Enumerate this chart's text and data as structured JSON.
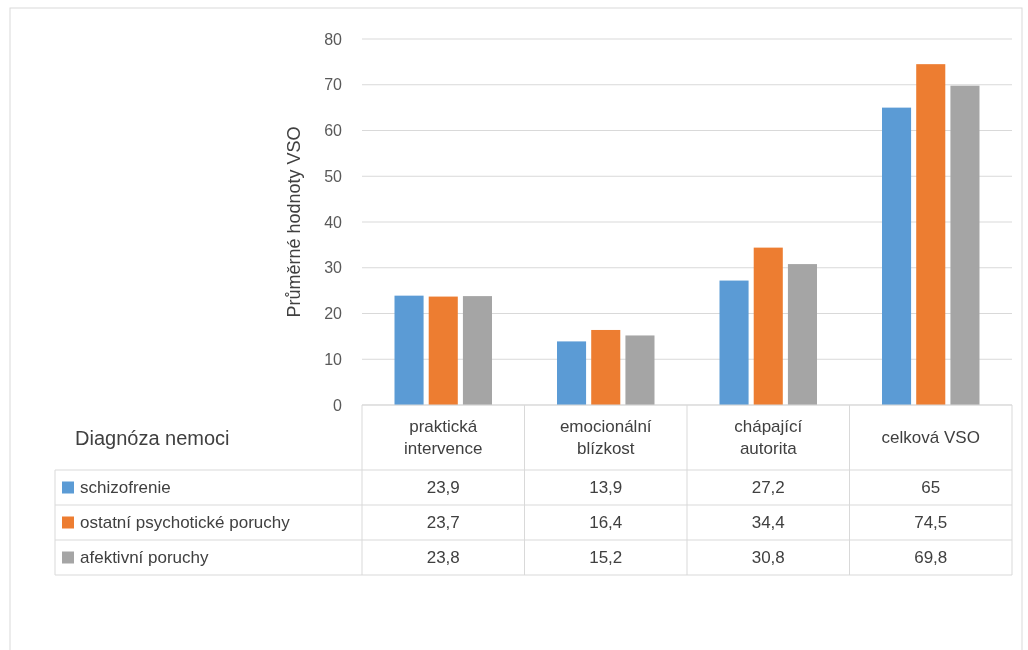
{
  "chart_data": {
    "type": "bar",
    "ylabel": "Průměrné hodnoty VSO",
    "legend_title": "Diagnóza nemoci",
    "categories": [
      "praktická intervence",
      "emocionální blízkost",
      "chápající autorita",
      "celková VSO"
    ],
    "series": [
      {
        "name": "schizofrenie",
        "color": "#5b9bd5",
        "values": [
          23.9,
          13.9,
          27.2,
          65
        ],
        "value_labels": [
          "23,9",
          "13,9",
          "27,2",
          "65"
        ]
      },
      {
        "name": "ostatní psychotické poruchy",
        "color": "#ed7d31",
        "values": [
          23.7,
          16.4,
          34.4,
          74.5
        ],
        "value_labels": [
          "23,7",
          "16,4",
          "34,4",
          "74,5"
        ]
      },
      {
        "name": "afektivní poruchy",
        "color": "#a5a5a5",
        "values": [
          23.8,
          15.2,
          30.8,
          69.8
        ],
        "value_labels": [
          "23,8",
          "15,2",
          "30,8",
          "69,8"
        ]
      }
    ],
    "ylim": [
      0,
      80
    ],
    "yticks": [
      0,
      10,
      20,
      30,
      40,
      50,
      60,
      70,
      80
    ],
    "grid": "y",
    "legend": "bottom"
  }
}
